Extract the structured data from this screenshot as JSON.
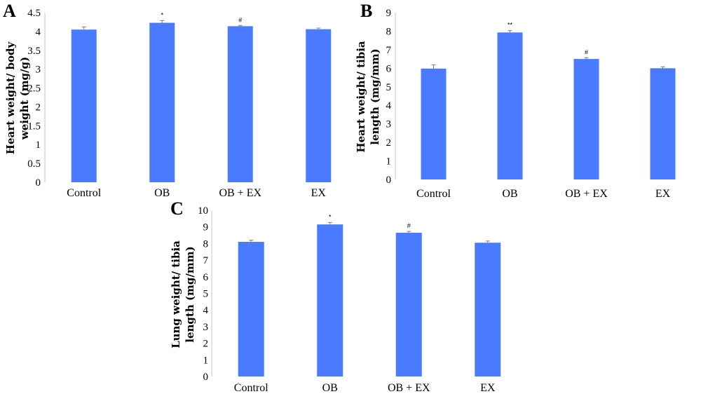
{
  "colors": {
    "bar": "#4a7bff",
    "error_bar": "#7a7a7a",
    "axis": "#c9c9c9"
  },
  "chart_data": [
    {
      "panel_label": "A",
      "type": "bar",
      "categories": [
        "Control",
        "OB",
        "OB + EX",
        "EX"
      ],
      "values": [
        4.05,
        4.23,
        4.14,
        4.06
      ],
      "errors": [
        0.07,
        0.06,
        0.02,
        0.03
      ],
      "annotations": [
        "",
        "*",
        "#",
        ""
      ],
      "ylabel_lines": [
        "Heart weight/ body",
        "weight (mg/g)"
      ],
      "ylim": [
        0,
        4.5
      ],
      "yticks": [
        "0",
        "0.5",
        "1",
        "1.5",
        "2",
        "2.5",
        "3",
        "3.5",
        "4",
        "4.5"
      ],
      "grid": false
    },
    {
      "panel_label": "B",
      "type": "bar",
      "categories": [
        "Control",
        "OB",
        "OB + EX",
        "EX"
      ],
      "values": [
        5.98,
        7.93,
        6.5,
        6.0
      ],
      "errors": [
        0.2,
        0.1,
        0.07,
        0.08
      ],
      "annotations": [
        "",
        "**",
        "#",
        ""
      ],
      "ylabel_lines": [
        "Heart weight/ tibia",
        "length (mg/mm)"
      ],
      "ylim": [
        0,
        9
      ],
      "yticks": [
        "0",
        "1",
        "2",
        "3",
        "4",
        "5",
        "6",
        "7",
        "8",
        "9"
      ],
      "grid": false
    },
    {
      "panel_label": "C",
      "type": "bar",
      "categories": [
        "Control",
        "OB",
        "OB + EX",
        "EX"
      ],
      "values": [
        8.1,
        9.15,
        8.65,
        8.05
      ],
      "errors": [
        0.1,
        0.12,
        0.08,
        0.1
      ],
      "annotations": [
        "",
        "*",
        "#",
        ""
      ],
      "ylabel_lines": [
        "Lung weight/ tibia",
        "length (mg/mm)"
      ],
      "ylim": [
        0,
        10
      ],
      "yticks": [
        "0",
        "1",
        "2",
        "3",
        "4",
        "5",
        "6",
        "7",
        "8",
        "9",
        "10"
      ],
      "grid": false
    }
  ]
}
